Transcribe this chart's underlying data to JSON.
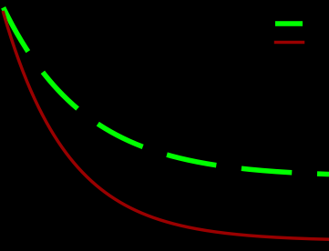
{
  "background_color": "#000000",
  "axes_facecolor": "#000000",
  "training_color": "#990000",
  "validation_color": "#00ff00",
  "training_linewidth": 2.5,
  "validation_linewidth": 4.0,
  "validation_dash_on": 10,
  "validation_dash_off": 5,
  "xlim": [
    0.0,
    1.0
  ],
  "ylim": [
    0.0,
    1.0
  ]
}
